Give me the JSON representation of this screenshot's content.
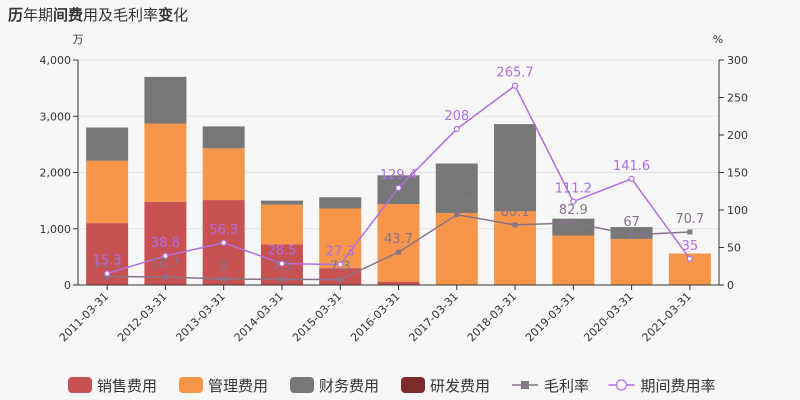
{
  "chart_data": {
    "type": "bar",
    "title": {
      "segments": [
        {
          "text": "历",
          "bold": true
        },
        {
          "text": "年期",
          "bold": false
        },
        {
          "text": "间费",
          "bold": true
        },
        {
          "text": "用及毛利率",
          "bold": false
        },
        {
          "text": "变",
          "bold": true
        },
        {
          "text": "化",
          "bold": false
        }
      ]
    },
    "y_left": {
      "unit": "万",
      "range": [
        0,
        4000
      ],
      "ticks": [
        "0",
        "1,000",
        "2,000",
        "3,000",
        "4,000"
      ],
      "tick_values": [
        0,
        1000,
        2000,
        3000,
        4000
      ]
    },
    "y_right": {
      "unit": "%",
      "range": [
        0,
        300
      ],
      "ticks": [
        "0",
        "50",
        "100",
        "150",
        "200",
        "250",
        "300"
      ],
      "tick_values": [
        0,
        50,
        100,
        150,
        200,
        250,
        300
      ]
    },
    "categories": [
      "2011-03-31",
      "2012-03-31",
      "2013-03-31",
      "2014-03-31",
      "2015-03-31",
      "2016-03-31",
      "2017-03-31",
      "2018-03-31",
      "2019-03-31",
      "2020-03-31",
      "2021-03-31"
    ],
    "bar_series": [
      {
        "name": "销售费用",
        "color": "#c85152",
        "values": [
          1100,
          1480,
          1510,
          720,
          300,
          60,
          0,
          0,
          0,
          0,
          0
        ]
      },
      {
        "name": "管理费用",
        "color": "#f7964a",
        "values": [
          1110,
          1390,
          920,
          710,
          1060,
          1380,
          1280,
          1310,
          880,
          820,
          560
        ]
      },
      {
        "name": "财务费用",
        "color": "#777777",
        "values": [
          590,
          830,
          390,
          70,
          200,
          510,
          880,
          1550,
          300,
          210,
          0
        ]
      },
      {
        "name": "研发费用",
        "color": "#7d2b2b",
        "values": [
          0,
          0,
          0,
          0,
          0,
          0,
          0,
          0,
          0,
          0,
          0
        ]
      }
    ],
    "line_series": [
      {
        "name": "毛利率",
        "color": "#87748a",
        "marker": "square",
        "values": [
          11.3,
          10.7,
          8,
          7.5,
          7.3,
          43.7,
          93.8,
          80.1,
          82.9,
          67,
          70.7
        ],
        "labels": [
          "11.3",
          "10.7",
          "8",
          "7.5",
          "7.3",
          "43.7",
          "93.8",
          "80.1",
          "82.9",
          "67",
          "70.7"
        ]
      },
      {
        "name": "期间费用率",
        "color": "#b06ee2",
        "marker": "circle",
        "values": [
          15.3,
          38.8,
          56.3,
          28.5,
          27.3,
          129.4,
          208,
          265.7,
          111.2,
          141.6,
          35
        ],
        "labels": [
          "15.3",
          "38.8",
          "56.3",
          "28.5",
          "27.3",
          "129.4",
          "208",
          "265.7",
          "111.2",
          "141.6",
          "35"
        ]
      }
    ],
    "legend": {
      "placement": "bottom"
    },
    "grid": true
  }
}
